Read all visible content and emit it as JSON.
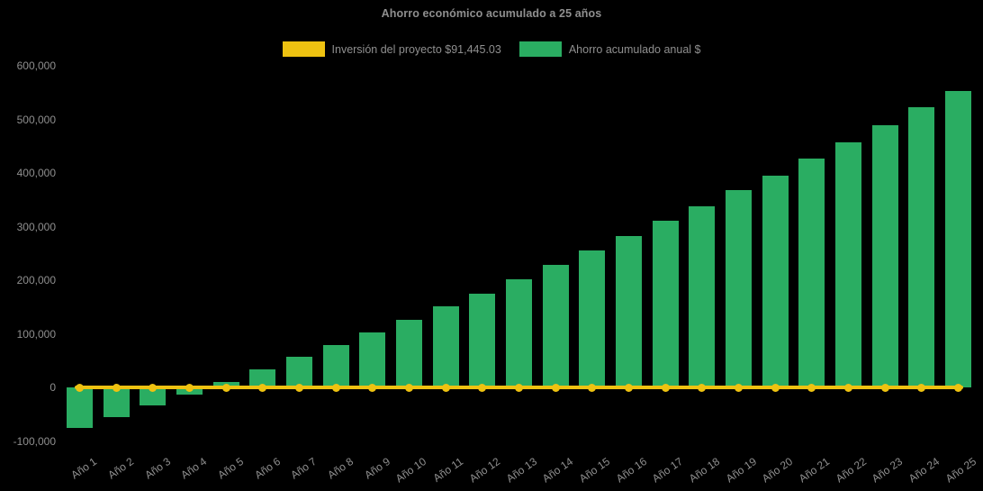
{
  "chart_data": {
    "type": "bar",
    "title": "Ahorro económico acumulado a 25 años",
    "background": "#000000",
    "text_color": "#8f8f8f",
    "grid": false,
    "legend_position": "top",
    "xlabel": "",
    "ylabel": "",
    "ylim": [
      -100000,
      600000
    ],
    "yticks": [
      {
        "value": 600000,
        "label": "600,000"
      },
      {
        "value": 500000,
        "label": "500,000"
      },
      {
        "value": 400000,
        "label": "400,000"
      },
      {
        "value": 300000,
        "label": "300,000"
      },
      {
        "value": 200000,
        "label": "200,000"
      },
      {
        "value": 100000,
        "label": "100,000"
      },
      {
        "value": 0,
        "label": "0"
      },
      {
        "value": -100000,
        "label": "-100,000"
      }
    ],
    "categories": [
      "Año 1",
      "Año 2",
      "Año 3",
      "Año 4",
      "Año 5",
      "Año 6",
      "Año 7",
      "Año 8",
      "Año 9",
      "Año 10",
      "Año 11",
      "Año 12",
      "Año 13",
      "Año 14",
      "Año 15",
      "Año 16",
      "Año 17",
      "Año 18",
      "Año 19",
      "Año 20",
      "Año 21",
      "Año 22",
      "Año 23",
      "Año 24",
      "Año 25"
    ],
    "series": [
      {
        "name": "Inversión del proyecto $91,445.03",
        "type": "line",
        "color": "#eec211",
        "marker": "circle",
        "values": [
          0,
          0,
          0,
          0,
          0,
          0,
          0,
          0,
          0,
          0,
          0,
          0,
          0,
          0,
          0,
          0,
          0,
          0,
          0,
          0,
          0,
          0,
          0,
          0,
          0
        ]
      },
      {
        "name": "Ahorro acumulado anual $",
        "type": "bar",
        "color": "#2aad62",
        "values": [
          -74000,
          -54000,
          -33000,
          -12000,
          11500,
          33500,
          57500,
          80000,
          103500,
          126500,
          151500,
          176000,
          202000,
          229000,
          256000,
          283000,
          311000,
          338500,
          368500,
          396000,
          426500,
          457000,
          489000,
          522000,
          552500
        ]
      }
    ]
  }
}
